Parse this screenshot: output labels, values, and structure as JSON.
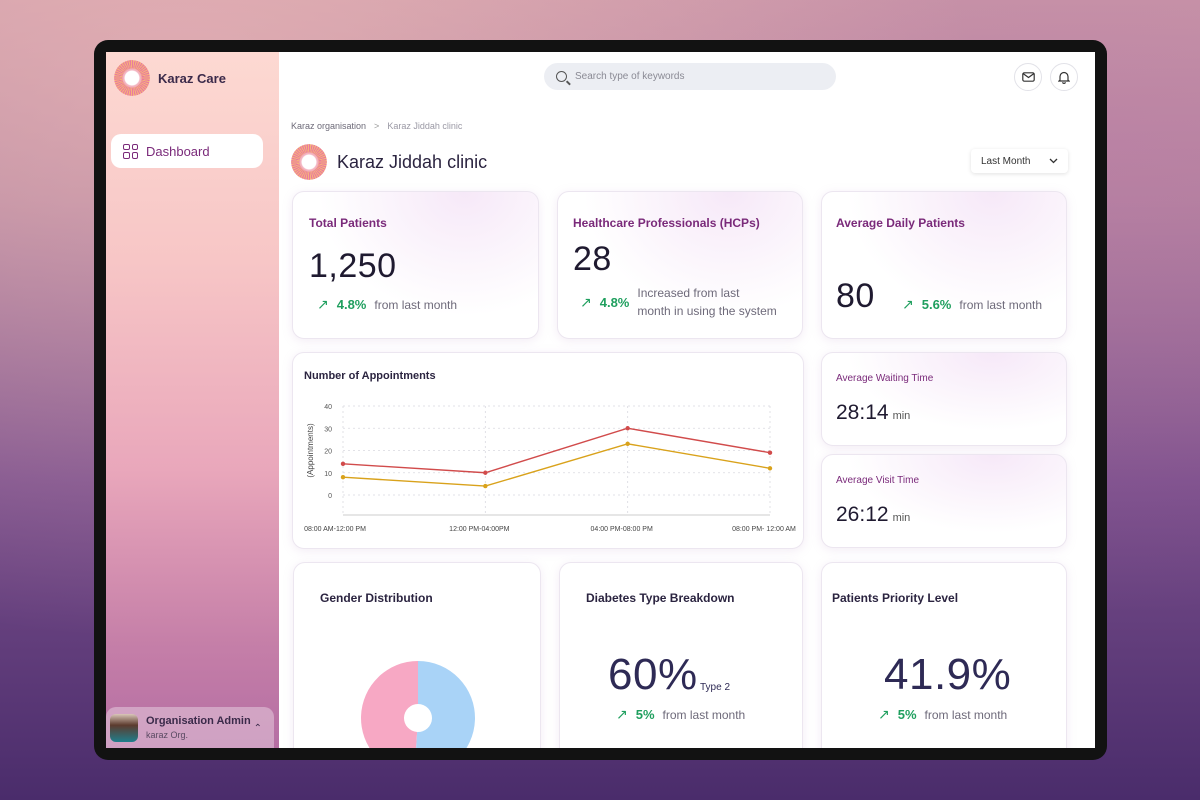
{
  "app": {
    "brand": "Karaz Care"
  },
  "sidebar": {
    "items": [
      {
        "label": "Dashboard",
        "icon": "grid-icon"
      }
    ],
    "user": {
      "name": "Organisation Admin",
      "org": "karaz Org."
    }
  },
  "topbar": {
    "search_placeholder": "Search type of keywords"
  },
  "breadcrumb": {
    "parent": "Karaz organisation",
    "separator": ">",
    "current": "Karaz Jiddah clinic"
  },
  "page": {
    "title": "Karaz Jiddah clinic",
    "period": "Last Month"
  },
  "stats": {
    "total_patients": {
      "title": "Total Patients",
      "value": "1,250",
      "pct": "4.8%",
      "note": "from last month"
    },
    "hcps": {
      "title": "Healthcare Professionals (HCPs)",
      "value": "28",
      "pct": "4.8%",
      "note_line1": "Increased from last",
      "note_line2": "month in using the system"
    },
    "avg_daily": {
      "title": "Average Daily Patients",
      "value": "80",
      "pct": "5.6%",
      "note": "from last month"
    },
    "waiting": {
      "title": "Average Waiting Time",
      "value": "28:14",
      "unit": "min"
    },
    "visit": {
      "title": "Average Visit Time",
      "value": "26:12",
      "unit": "min"
    }
  },
  "bottom": {
    "gender": {
      "title": "Gender Distribution"
    },
    "diabetes": {
      "title": "Diabetes Type Breakdown",
      "value": "60%",
      "label": "Type 2",
      "pct": "5%",
      "note": "from last month"
    },
    "priority": {
      "title": "Patients Priority Level",
      "value": "41.9%",
      "pct": "5%",
      "note": "from last month"
    }
  },
  "colors": {
    "accent": "#7a2a7a",
    "positive": "#1f9f5e",
    "series_red": "#d14b4b",
    "series_gold": "#d9a21b",
    "pie_female": "#f7a8c4",
    "pie_male": "#a9d3f7"
  },
  "chart_data": {
    "type": "line",
    "title": "Number of Appointments",
    "ylabel": "(Appointments)",
    "xlabel": "",
    "categories": [
      "08:00 AM-12:00 PM",
      "12:00 PM-04:00PM",
      "04:00 PM-08:00 PM",
      "08:00 PM- 12:00 AM"
    ],
    "yticks": [
      0,
      10,
      20,
      30,
      40
    ],
    "ylim": [
      0,
      40
    ],
    "grid": true,
    "series": [
      {
        "color": "#d14b4b",
        "values": [
          14,
          10,
          30,
          19
        ]
      },
      {
        "color": "#d9a21b",
        "values": [
          8,
          4,
          23,
          12
        ]
      }
    ]
  },
  "pie_data": {
    "type": "pie",
    "slices": [
      {
        "color": "#f7a8c4",
        "value": 49
      },
      {
        "color": "#a9d3f7",
        "value": 51
      }
    ]
  }
}
